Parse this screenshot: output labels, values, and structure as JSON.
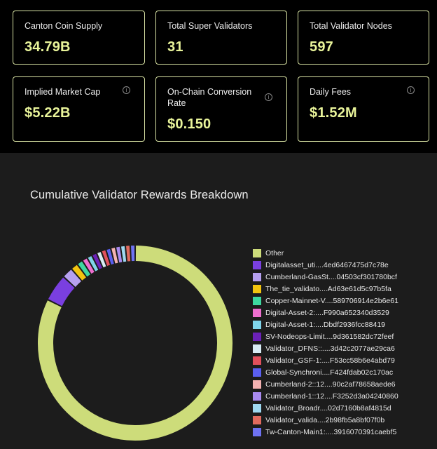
{
  "stats": [
    {
      "label": "Canton Coin Supply",
      "value": "34.79B",
      "info": false
    },
    {
      "label": "Total Super Validators",
      "value": "31",
      "info": false
    },
    {
      "label": "Total Validator Nodes",
      "value": "597",
      "info": false
    },
    {
      "label": "Implied Market Cap",
      "value": "$5.22B",
      "info": true
    },
    {
      "label": "On-Chain Conversion Rate",
      "value": "$0.150",
      "info": true
    },
    {
      "label": "Daily Fees",
      "value": "$1.52M",
      "info": true
    }
  ],
  "info_glyph": "i",
  "chart_data": {
    "type": "pie",
    "title": "Cumulative Validator Rewards Breakdown",
    "donut": true,
    "legend_position": "right",
    "series": [
      {
        "name": "Other",
        "value": 81.5,
        "color": "#cddc7a"
      },
      {
        "name": "Digitalasset_uti....4ed6467475d7c78e",
        "value": 4.5,
        "color": "#7a3fe0"
      },
      {
        "name": "Cumberland-GasSt....04503cf301780bcf",
        "value": 1.8,
        "color": "#b6a0f0"
      },
      {
        "name": "The_tie_validato....Ad63e61d5c97b5fa",
        "value": 1.2,
        "color": "#f2c40f"
      },
      {
        "name": "Copper-Mainnet-V....589706914e2b6e61",
        "value": 1.0,
        "color": "#3ed8a0"
      },
      {
        "name": "Digital-Asset-2:....F990a652340d3529",
        "value": 0.9,
        "color": "#ee6fcf"
      },
      {
        "name": "Digital-Asset-1:....Dbdf2936fcc88419",
        "value": 0.85,
        "color": "#7fd4ea"
      },
      {
        "name": "SV-Nodeops-Limit....9d361582dc72feef",
        "value": 0.85,
        "color": "#6b21b8"
      },
      {
        "name": "Validator_DFNS::....3d42c2077ae29ca6",
        "value": 0.8,
        "color": "#d8ecf4"
      },
      {
        "name": "Validator_GSF-1:....F53cc58b6e4abd79",
        "value": 0.8,
        "color": "#e0505c"
      },
      {
        "name": "Global-Synchroni....F424fdab02c170ac",
        "value": 0.8,
        "color": "#5a5ff0"
      },
      {
        "name": "Cumberland-2::12....90c2af78658aede6",
        "value": 0.8,
        "color": "#f4b2b2"
      },
      {
        "name": "Cumberland-1::12....F3252d3a04240860",
        "value": 0.8,
        "color": "#a98af0"
      },
      {
        "name": "Validator_Broadr....02d7160b8af4815d",
        "value": 0.8,
        "color": "#9ed8f0"
      },
      {
        "name": "Validator_valida....2b98fb5a8bf07f0b",
        "value": 0.8,
        "color": "#e06a5e"
      },
      {
        "name": "Tw-Canton-Main1:....3916070391caebf5",
        "value": 0.8,
        "color": "#6e72f2"
      }
    ]
  }
}
